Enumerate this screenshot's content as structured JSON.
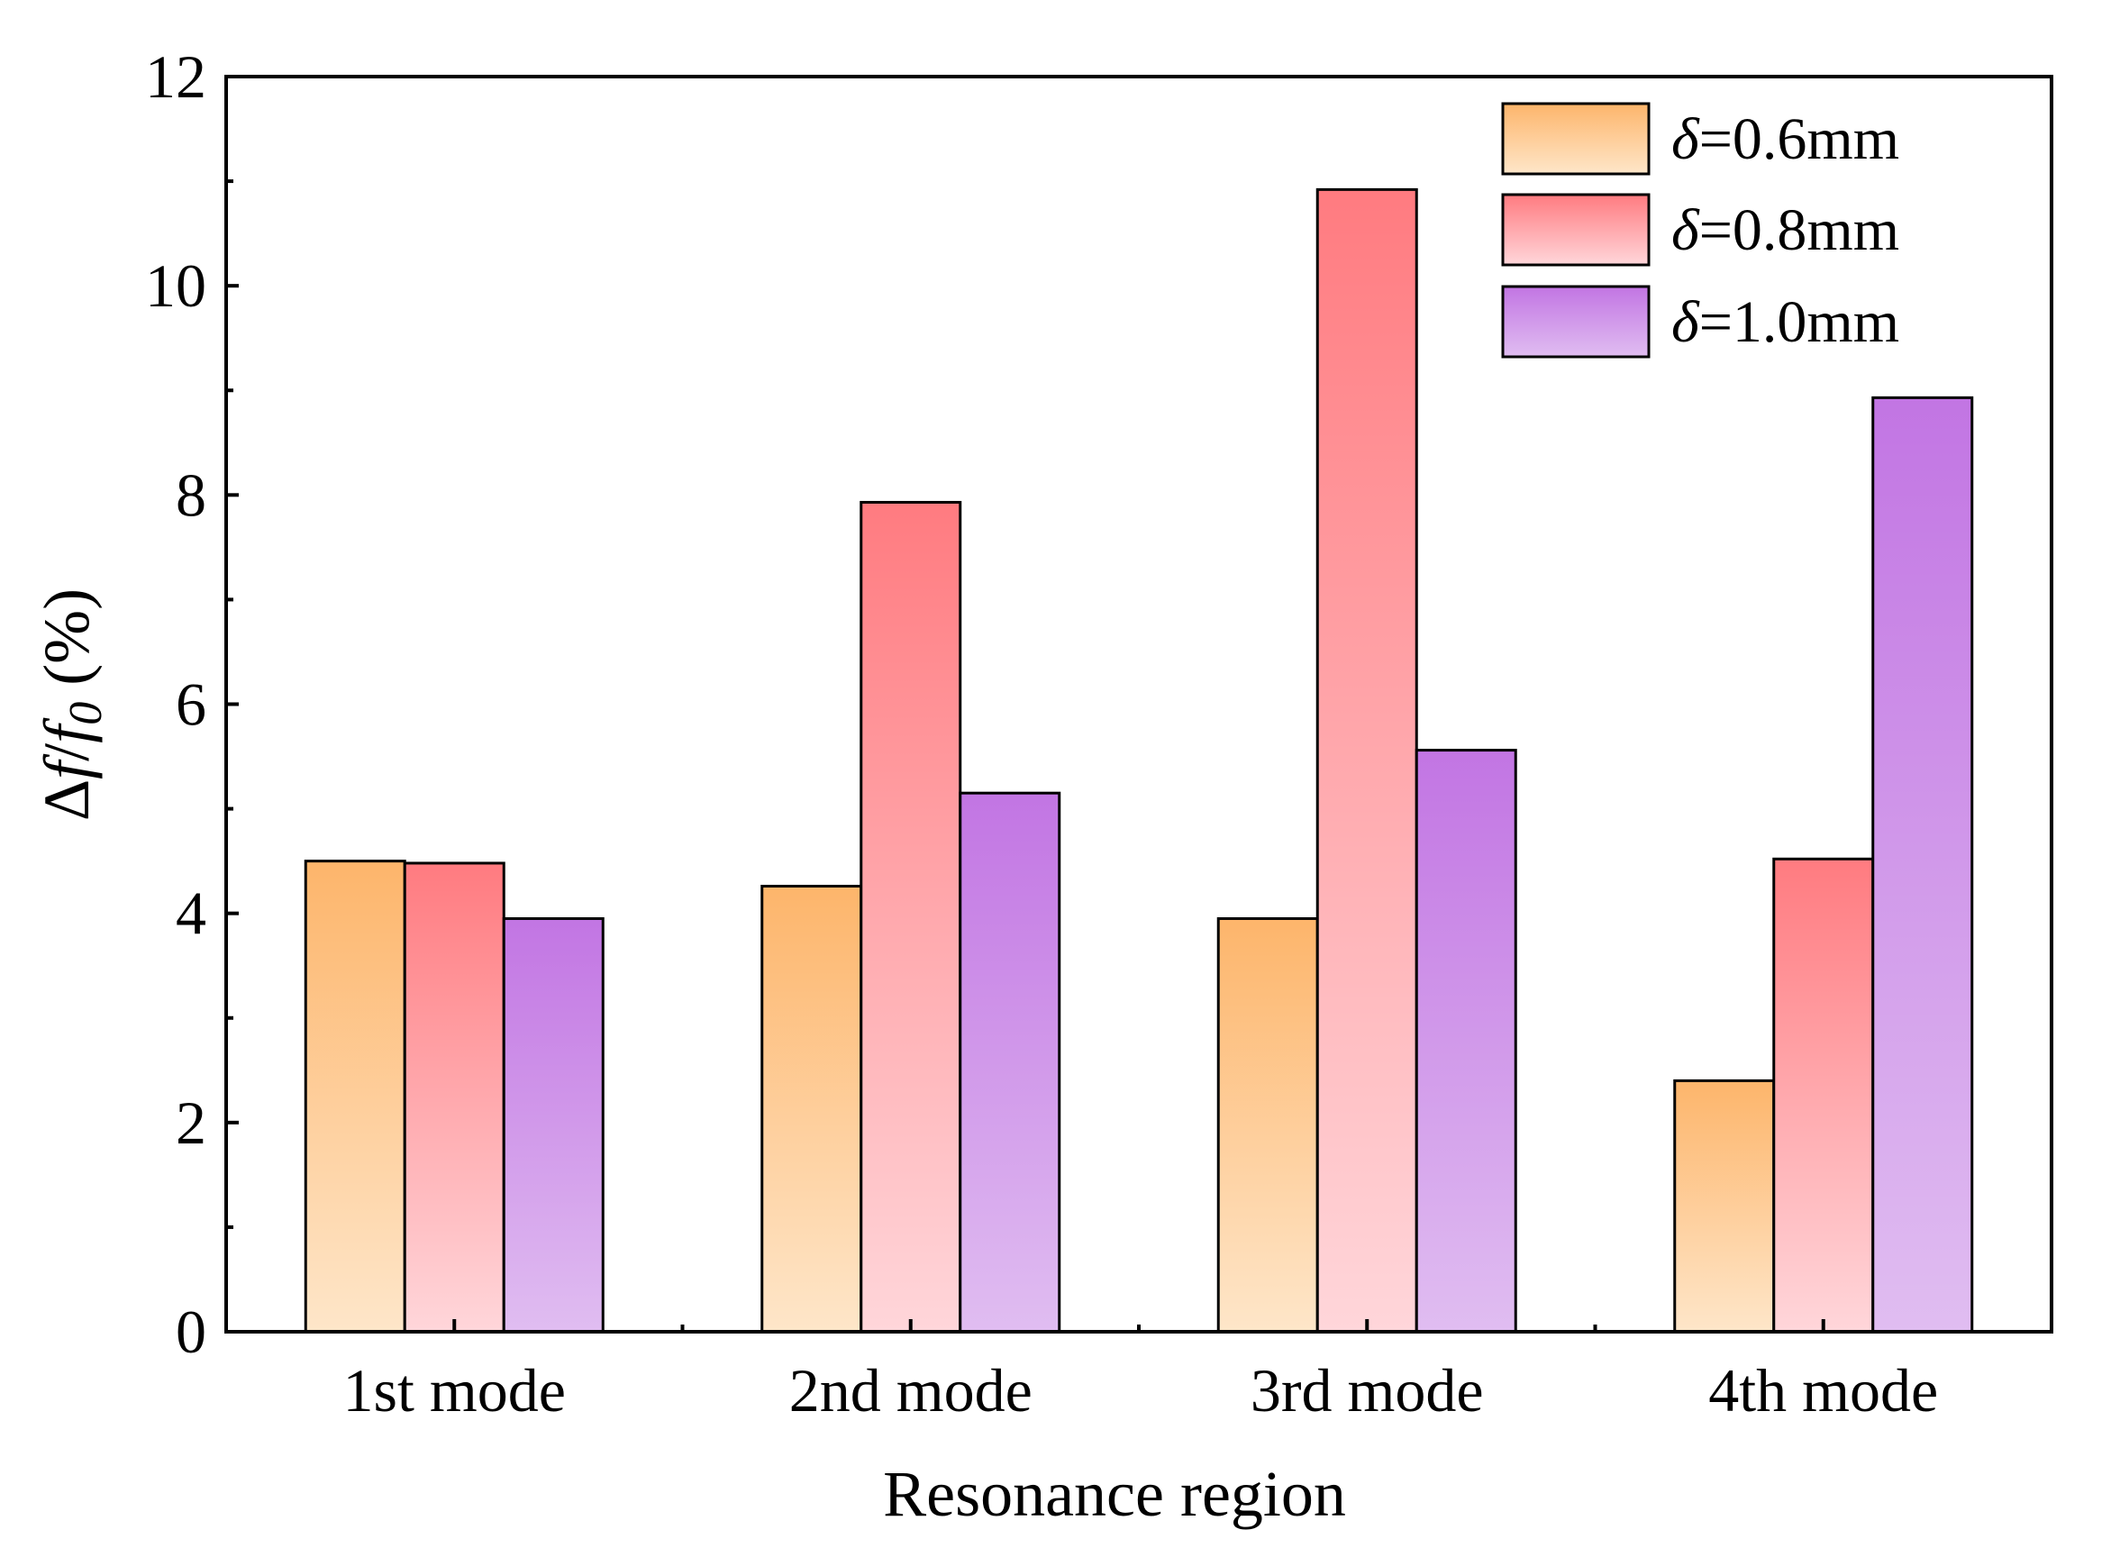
{
  "chart_data": {
    "type": "bar",
    "categories": [
      "1st mode",
      "2nd mode",
      "3rd mode",
      "4th mode"
    ],
    "series": [
      {
        "name": "δ=0.6mm",
        "symbol": "δ",
        "label_rest": "=0.6mm",
        "values": [
          4.5,
          4.26,
          3.95,
          2.4
        ],
        "color_top": "#fdb56b",
        "color_bottom": "#fee6c9"
      },
      {
        "name": "δ=0.8mm",
        "symbol": "δ",
        "label_rest": "=0.8mm",
        "values": [
          4.48,
          7.93,
          10.92,
          4.52
        ],
        "color_top": "#ff7b80",
        "color_bottom": "#ffd6da"
      },
      {
        "name": "δ=1.0mm",
        "symbol": "δ",
        "label_rest": "=1.0mm",
        "values": [
          3.95,
          5.15,
          5.56,
          8.93
        ],
        "color_top": "#c275e3",
        "color_bottom": "#e0bdf1"
      }
    ],
    "title": "",
    "xlabel": "Resonance region",
    "ylabel": {
      "delta": "Δ",
      "f": "f",
      "slash": "/",
      "f0": "f",
      "sub": "0",
      "unit": " (%)"
    },
    "ylim": [
      0,
      12
    ],
    "yticks": [
      0,
      2,
      4,
      6,
      8,
      10,
      12
    ],
    "legend_position": "top-right",
    "grid": false
  }
}
